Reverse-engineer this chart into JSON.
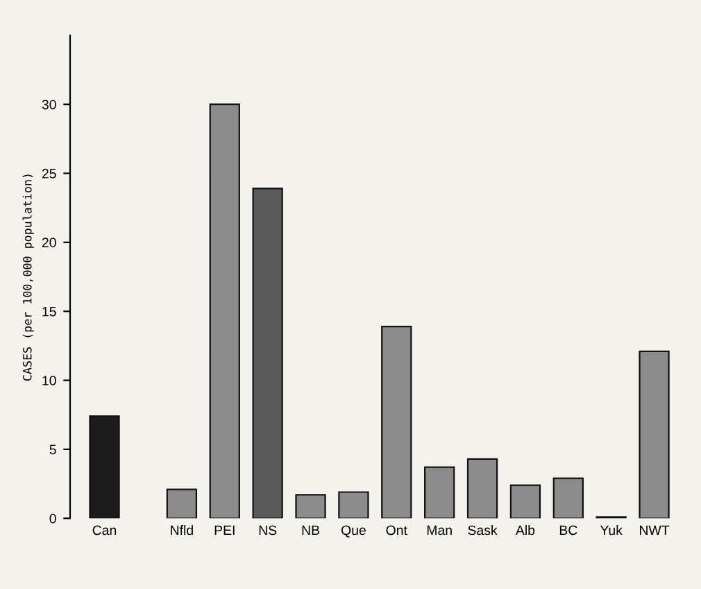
{
  "chart_data": {
    "type": "bar",
    "ylabel": "CASES (per 100,000 population)",
    "categories": [
      "Can",
      "Nfld",
      "PEI",
      "NS",
      "NB",
      "Que",
      "Ont",
      "Man",
      "Sask",
      "Alb",
      "BC",
      "Yuk",
      "NWT"
    ],
    "values": [
      7.4,
      2.1,
      30.0,
      23.9,
      1.7,
      1.9,
      13.9,
      3.7,
      4.3,
      2.4,
      2.9,
      0.1,
      12.1
    ],
    "colors": [
      "#1c1c1c",
      "#8c8c8c",
      "#8c8c8c",
      "#5a5a5a",
      "#8c8c8c",
      "#8c8c8c",
      "#8c8c8c",
      "#8c8c8c",
      "#8c8c8c",
      "#8c8c8c",
      "#8c8c8c",
      "#8c8c8c",
      "#8c8c8c"
    ],
    "ylim": [
      0,
      35
    ],
    "yticks": [
      0,
      5,
      10,
      15,
      20,
      25,
      30
    ],
    "grid": false,
    "legend": false
  }
}
